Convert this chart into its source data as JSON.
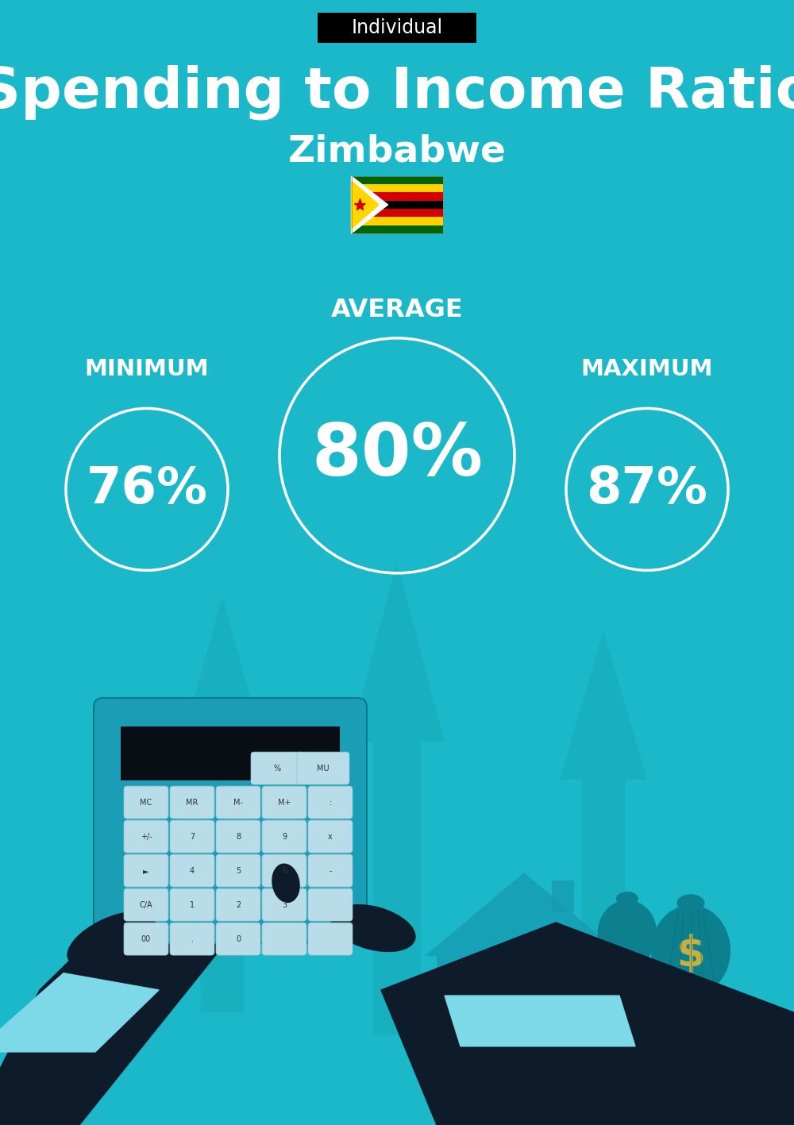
{
  "bg_color": "#1ab8c8",
  "title": "Spending to Income Ratio",
  "subtitle": "Zimbabwe",
  "tag_text": "Individual",
  "tag_bg": "#000000",
  "tag_text_color": "#ffffff",
  "title_color": "#ffffff",
  "subtitle_color": "#ffffff",
  "min_label": "MINIMUM",
  "avg_label": "AVERAGE",
  "max_label": "MAXIMUM",
  "min_value": "76%",
  "avg_value": "80%",
  "max_value": "87%",
  "circle_edge_color": "#ffffff",
  "circle_text_color": "#ffffff",
  "label_color": "#ffffff",
  "arrow_color": "#17a8b8",
  "house_color": "#16a0b0",
  "calc_color": "#1a9eb5",
  "hand_color": "#0d1b2a",
  "cuff_color": "#7dd8e8",
  "bag_color": "#0f8a99",
  "dollar_color": "#c8b040"
}
